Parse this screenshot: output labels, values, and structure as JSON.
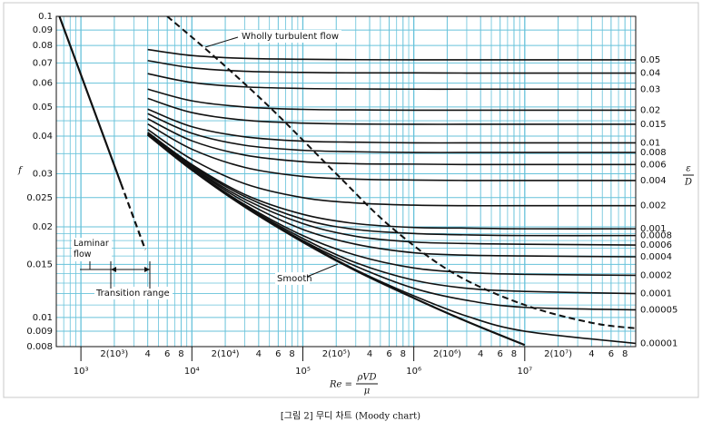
{
  "chart_data": {
    "type": "line",
    "xscale": "log",
    "yscale": "log",
    "grid": true,
    "grid_color": "#67c2da",
    "line_color": "#111111",
    "xlim": [
      600,
      100000000
    ],
    "ylim": [
      0.008,
      0.1
    ],
    "yticks": [
      0.008,
      0.009,
      0.01,
      0.015,
      0.02,
      0.025,
      0.03,
      0.04,
      0.05,
      0.06,
      0.07,
      0.08,
      0.09,
      0.1
    ],
    "y_minor_ticks": [
      0.011,
      0.012,
      0.013,
      0.014,
      0.016,
      0.017,
      0.018,
      0.019,
      0.035,
      0.045
    ],
    "xticks": [
      {
        "value": 1000,
        "label": "10³"
      },
      {
        "value": 10000,
        "label": "10⁴"
      },
      {
        "value": 100000,
        "label": "10⁵"
      },
      {
        "value": 1000000,
        "label": "10⁶"
      },
      {
        "value": 10000000,
        "label": "10⁷"
      }
    ],
    "xticks_mid": [
      {
        "value": 2000,
        "label": "2(10³)"
      },
      {
        "value": 4000,
        "label": "4"
      },
      {
        "value": 6000,
        "label": "6"
      },
      {
        "value": 8000,
        "label": "8"
      },
      {
        "value": 20000,
        "label": "2(10⁴)"
      },
      {
        "value": 40000,
        "label": "4"
      },
      {
        "value": 60000,
        "label": "6"
      },
      {
        "value": 80000,
        "label": "8"
      },
      {
        "value": 200000,
        "label": "2(10⁵)"
      },
      {
        "value": 400000,
        "label": "4"
      },
      {
        "value": 600000,
        "label": "6"
      },
      {
        "value": 800000,
        "label": "8"
      },
      {
        "value": 2000000,
        "label": "2(10⁶)"
      },
      {
        "value": 4000000,
        "label": "4"
      },
      {
        "value": 6000000,
        "label": "6"
      },
      {
        "value": 8000000,
        "label": "8"
      },
      {
        "value": 20000000,
        "label": "2(10⁷)"
      },
      {
        "value": 40000000,
        "label": "4"
      },
      {
        "value": 60000000,
        "label": "6"
      },
      {
        "value": 80000000,
        "label": "8"
      }
    ],
    "x_minor_ticks": [
      700,
      800,
      900,
      3000,
      5000,
      7000,
      9000,
      30000,
      50000,
      70000,
      90000,
      300000,
      500000,
      700000,
      900000,
      3000000,
      5000000,
      7000000,
      9000000,
      30000000,
      50000000,
      70000000,
      90000000
    ],
    "y_label": "f",
    "y2_label": {
      "numerator": "ε",
      "denominator": "D"
    },
    "x_label": {
      "prefix": "Re =",
      "numerator": "ρVD",
      "denominator": "μ"
    },
    "caption": "[그림 2] 무디 차트 (Moody chart)",
    "x": [
      4000,
      10000,
      30000,
      100000,
      300000,
      1000000,
      3000000,
      10000000,
      100000000
    ],
    "series": [
      {
        "name": "0.05",
        "values": [
          0.0776,
          0.0741,
          0.0725,
          0.072,
          0.0718,
          0.0717,
          0.0717,
          0.0717,
          0.0717
        ]
      },
      {
        "name": "0.04",
        "values": [
          0.0713,
          0.0675,
          0.0657,
          0.0651,
          0.0649,
          0.0649,
          0.0648,
          0.0648,
          0.0648
        ]
      },
      {
        "name": "0.03",
        "values": [
          0.0645,
          0.0603,
          0.0583,
          0.0576,
          0.0574,
          0.0573,
          0.0573,
          0.0573,
          0.0573
        ]
      },
      {
        "name": "0.02",
        "values": [
          0.0573,
          0.0524,
          0.05,
          0.0491,
          0.0489,
          0.0488,
          0.0488,
          0.0488,
          0.0488
        ]
      },
      {
        "name": "0.015",
        "values": [
          0.0534,
          0.0479,
          0.0452,
          0.0442,
          0.0439,
          0.0438,
          0.0438,
          0.0438,
          0.0438
        ]
      },
      {
        "name": "0.01",
        "values": [
          0.0492,
          0.043,
          0.0398,
          0.0385,
          0.0382,
          0.038,
          0.038,
          0.038,
          0.038
        ]
      },
      {
        "name": "0.008",
        "values": [
          0.0475,
          0.0409,
          0.0373,
          0.0359,
          0.0355,
          0.0353,
          0.0353,
          0.0353,
          0.0353
        ]
      },
      {
        "name": "0.006",
        "values": [
          0.0457,
          0.0386,
          0.0346,
          0.0329,
          0.0324,
          0.0323,
          0.0322,
          0.0322,
          0.0322
        ]
      },
      {
        "name": "0.004",
        "values": [
          0.0439,
          0.0362,
          0.0315,
          0.0294,
          0.0288,
          0.0286,
          0.0285,
          0.0285,
          0.0285
        ]
      },
      {
        "name": "0.002",
        "values": [
          0.0421,
          0.0335,
          0.0278,
          0.025,
          0.024,
          0.0236,
          0.0235,
          0.0235,
          0.0235
        ]
      },
      {
        "name": "0.001",
        "values": [
          0.0412,
          0.0322,
          0.0256,
          0.022,
          0.0205,
          0.0199,
          0.0198,
          0.0197,
          0.0197
        ]
      },
      {
        "name": "0.0008",
        "values": [
          0.041,
          0.0319,
          0.0252,
          0.0212,
          0.0196,
          0.019,
          0.0188,
          0.0187,
          0.0187
        ]
      },
      {
        "name": "0.0006",
        "values": [
          0.0409,
          0.0316,
          0.0247,
          0.0205,
          0.0186,
          0.0178,
          0.0176,
          0.0175,
          0.0174
        ]
      },
      {
        "name": "0.0004",
        "values": [
          0.0407,
          0.0314,
          0.0242,
          0.0196,
          0.0175,
          0.0164,
          0.0161,
          0.016,
          0.0159
        ]
      },
      {
        "name": "0.0002",
        "values": [
          0.0406,
          0.0311,
          0.0237,
          0.0187,
          0.0161,
          0.0146,
          0.0141,
          0.0139,
          0.0138
        ]
      },
      {
        "name": "0.0001",
        "values": [
          0.0405,
          0.031,
          0.0235,
          0.0183,
          0.0152,
          0.0133,
          0.0125,
          0.0122,
          0.012
        ]
      },
      {
        "name": "0.00005",
        "values": [
          0.0404,
          0.0309,
          0.0234,
          0.018,
          0.0148,
          0.0125,
          0.0114,
          0.0108,
          0.0106
        ]
      },
      {
        "name": "0.00001",
        "values": [
          0.0404,
          0.0309,
          0.0233,
          0.0179,
          0.0144,
          0.0118,
          0.0101,
          0.009,
          0.0082
        ]
      }
    ],
    "smooth": {
      "name": "Smooth",
      "values": [
        0.0404,
        0.0309,
        0.0233,
        0.0178,
        0.0143,
        0.0116,
        0.0097,
        0.0081,
        null
      ]
    },
    "laminar": {
      "name": "Laminar flow",
      "x": [
        640,
        2300
      ],
      "values": [
        0.1,
        0.0278
      ]
    },
    "transition": {
      "name": "Transition range",
      "dashed": true,
      "x": [
        2300,
        3800
      ],
      "values": [
        0.0278,
        0.0168
      ]
    },
    "wholly_turbulent": {
      "name": "Wholly turbulent flow",
      "dashed": true,
      "x": [
        6000,
        17000,
        53000,
        200000,
        620000,
        2300000,
        10000000,
        40000000,
        100000000
      ],
      "values": [
        0.1,
        0.072,
        0.049,
        0.03,
        0.02,
        0.014,
        0.011,
        0.0096,
        0.0092
      ]
    }
  }
}
